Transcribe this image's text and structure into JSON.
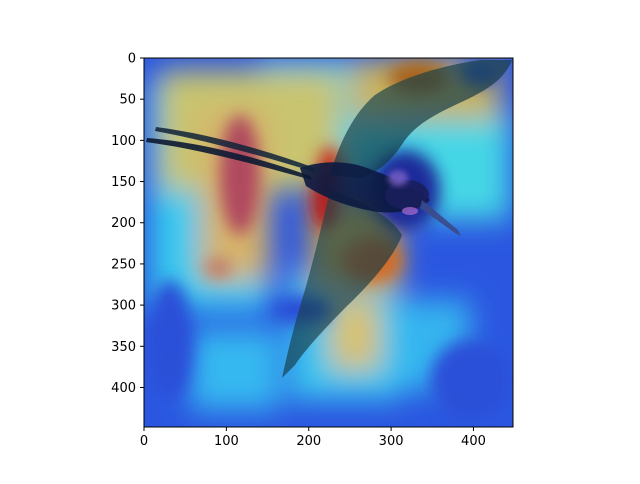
{
  "chart_data": {
    "type": "heatmap",
    "description_free": true,
    "colormap": "jet",
    "overlay": "bird photograph (frigatebird in flight) blended over attention heatmap",
    "xlim": [
      0,
      448
    ],
    "ylim": [
      448,
      0
    ],
    "x_ticks": [
      0,
      100,
      200,
      300,
      400
    ],
    "y_ticks": [
      0,
      50,
      100,
      150,
      200,
      250,
      300,
      350,
      400
    ],
    "grid": false,
    "colors": {
      "low": "#1f3fd6",
      "mid_low": "#2fb6f0",
      "mid": "#3fd8e8",
      "mid_high": "#c9c96a",
      "high": "#d47a3c",
      "peak": "#b3242a",
      "bird_dark": "#0c1a33"
    }
  }
}
